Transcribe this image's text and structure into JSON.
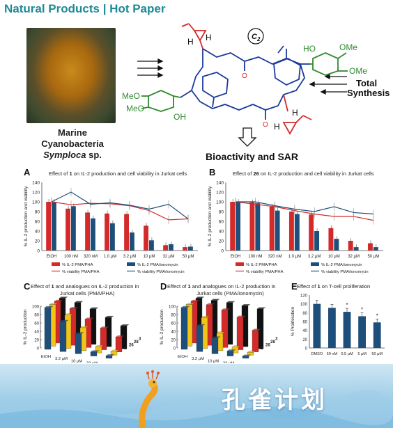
{
  "header": {
    "title": "Natural Products | Hot Paper"
  },
  "photo_caption": {
    "line1": "Marine",
    "line2": "Cyanobacteria",
    "line3": "Symploca",
    "line3b": " sp."
  },
  "scheme": {
    "c2_label": "C",
    "c2_sub": "2",
    "total_synthesis_line1": "Total",
    "total_synthesis_line2": "Synthesis",
    "bioactivity": "Bioactivity and SAR",
    "atom_labels": {
      "H_top": "H",
      "H_top2": "H",
      "H_bot": "H",
      "H_bot2": "H",
      "HO": "HO",
      "OMe_right1": "OMe",
      "OMe_right2": "OMe",
      "MeO_left1": "MeO",
      "MeO_left2": "MeO",
      "OH_left": "OH",
      "O": "O"
    }
  },
  "colors": {
    "red": "#d42a2a",
    "navy": "#1e4f7a",
    "green": "#2e8b2e",
    "blue": "#1a3a9c",
    "teal": "#1f8a94"
  },
  "chart_data": [
    {
      "panel": "A",
      "type": "bar",
      "title_pre": "Effect of ",
      "title_bold": "1",
      "title_post": " on IL-2 production and cell viability in Jurkat cells",
      "ylabel": "% IL-2 production and viability",
      "ylim": [
        0,
        140
      ],
      "yticks": [
        0,
        20,
        40,
        60,
        80,
        100,
        120,
        140
      ],
      "categories": [
        "EtOH",
        "100 nM",
        "320 nM",
        "1.0 μM",
        "3.2 μM",
        "10 μM",
        "32 μM",
        "50 μM"
      ],
      "series": [
        {
          "name": "% IL-2 PMA/PHA",
          "kind": "bar",
          "color": "#d42a2a",
          "values": [
            100,
            86,
            78,
            76,
            75,
            51,
            11,
            7
          ]
        },
        {
          "name": "% IL-2 PMA/ionomycin",
          "kind": "bar",
          "color": "#1e4f7a",
          "values": [
            100,
            91,
            66,
            56,
            37,
            21,
            13,
            8
          ]
        },
        {
          "name": "% viability PMA/PHA",
          "kind": "line",
          "color": "#d42a2a",
          "values": [
            100,
            94,
            97,
            96,
            92,
            82,
            63,
            65
          ]
        },
        {
          "name": "% viability PMA/ionomycin",
          "kind": "line",
          "color": "#1e4f7a",
          "values": [
            100,
            120,
            95,
            98,
            93,
            85,
            95,
            65
          ]
        }
      ]
    },
    {
      "panel": "B",
      "type": "bar",
      "title_pre": "Effect of ",
      "title_bold": "26",
      "title_post": " on IL-2 production and cell viability in Jurkat cells",
      "ylabel": "% IL-2 production and viability",
      "ylim": [
        0,
        140
      ],
      "yticks": [
        0,
        20,
        40,
        60,
        80,
        100,
        120,
        140
      ],
      "categories": [
        "EtOH",
        "100 nM",
        "320 nM",
        "1.0 μM",
        "3.2 μM",
        "10 μM",
        "32 μM",
        "50 μM"
      ],
      "series": [
        {
          "name": "% IL-2 PMA/PHA",
          "kind": "bar",
          "color": "#d42a2a",
          "values": [
            100,
            99,
            90,
            80,
            74,
            46,
            20,
            15
          ]
        },
        {
          "name": "% IL-2 PMA/ionomycin",
          "kind": "bar",
          "color": "#1e4f7a",
          "values": [
            100,
            97,
            82,
            75,
            40,
            24,
            7,
            7
          ]
        },
        {
          "name": "% viability PMA/PHA",
          "kind": "line",
          "color": "#d42a2a",
          "values": [
            100,
            95,
            90,
            82,
            75,
            70,
            70,
            62
          ]
        },
        {
          "name": "% viability PMA/ionomycin",
          "kind": "line",
          "color": "#1e4f7a",
          "values": [
            100,
            100,
            92,
            85,
            80,
            90,
            78,
            75
          ]
        }
      ]
    },
    {
      "panel": "C",
      "type": "bar",
      "view": "3d",
      "title_pre": "Effect of ",
      "title_bold": "1",
      "title_post": " and analogues on IL-2 production in",
      "title_line2": "Jurkat cells (PMA/PHA)",
      "ylabel": "% IL-2 production",
      "ylim": [
        0,
        100
      ],
      "yticks": [
        0,
        20,
        40,
        60,
        80,
        100
      ],
      "categories": [
        "EtOH",
        "3.2 μM",
        "10 μM",
        "32 μM",
        "50 μM"
      ],
      "series": [
        {
          "name": "1",
          "color": "#1e4f7a",
          "values": [
            100,
            72,
            48,
            10,
            6
          ]
        },
        {
          "name": "26",
          "color": "#f2c418",
          "values": [
            100,
            80,
            55,
            15,
            9
          ]
        },
        {
          "name": "28",
          "color": "#d42a2a",
          "values": [
            100,
            88,
            68,
            52,
            36
          ]
        },
        {
          "name": "3",
          "color": "#111111",
          "values": [
            100,
            95,
            85,
            70,
            55
          ]
        }
      ]
    },
    {
      "panel": "D",
      "type": "bar",
      "view": "3d",
      "title_pre": "Effect of ",
      "title_bold": "1",
      "title_post": " and analogues on IL-2 production in",
      "title_line2": "Jurkat cells (PMA/ionomycin)",
      "ylabel": "% IL-2 production",
      "ylim": [
        0,
        100
      ],
      "yticks": [
        0,
        20,
        40,
        60,
        80,
        100
      ],
      "categories": [
        "EtOH",
        "3.2 μM",
        "10 μM",
        "32 μM",
        "50 μM"
      ],
      "series": [
        {
          "name": "1",
          "color": "#1e4f7a",
          "values": [
            100,
            62,
            38,
            12,
            5
          ]
        },
        {
          "name": "26",
          "color": "#f2c418",
          "values": [
            100,
            74,
            42,
            14,
            7
          ]
        },
        {
          "name": "28",
          "color": "#d42a2a",
          "values": [
            100,
            97,
            90,
            78,
            52
          ]
        },
        {
          "name": "3",
          "color": "#111111",
          "values": [
            100,
            100,
            100,
            98,
            96
          ]
        }
      ]
    },
    {
      "panel": "E",
      "type": "bar",
      "title_pre": "Effect of ",
      "title_bold": "1",
      "title_post": " on T-cell proliferation",
      "ylabel": "% Proliferation",
      "ylim": [
        0,
        120
      ],
      "yticks": [
        0,
        20,
        40,
        60,
        80,
        100,
        120
      ],
      "categories": [
        "DMSO",
        "50 nM",
        "0.5 μM",
        "5 μM",
        "50 μM"
      ],
      "significance": [
        "",
        "",
        "*",
        "*",
        "*"
      ],
      "series": [
        {
          "name": "",
          "color": "#1e4f7a",
          "values": [
            100,
            91,
            82,
            72,
            58
          ]
        }
      ]
    }
  ],
  "banner": {
    "text": "孔雀计划"
  }
}
